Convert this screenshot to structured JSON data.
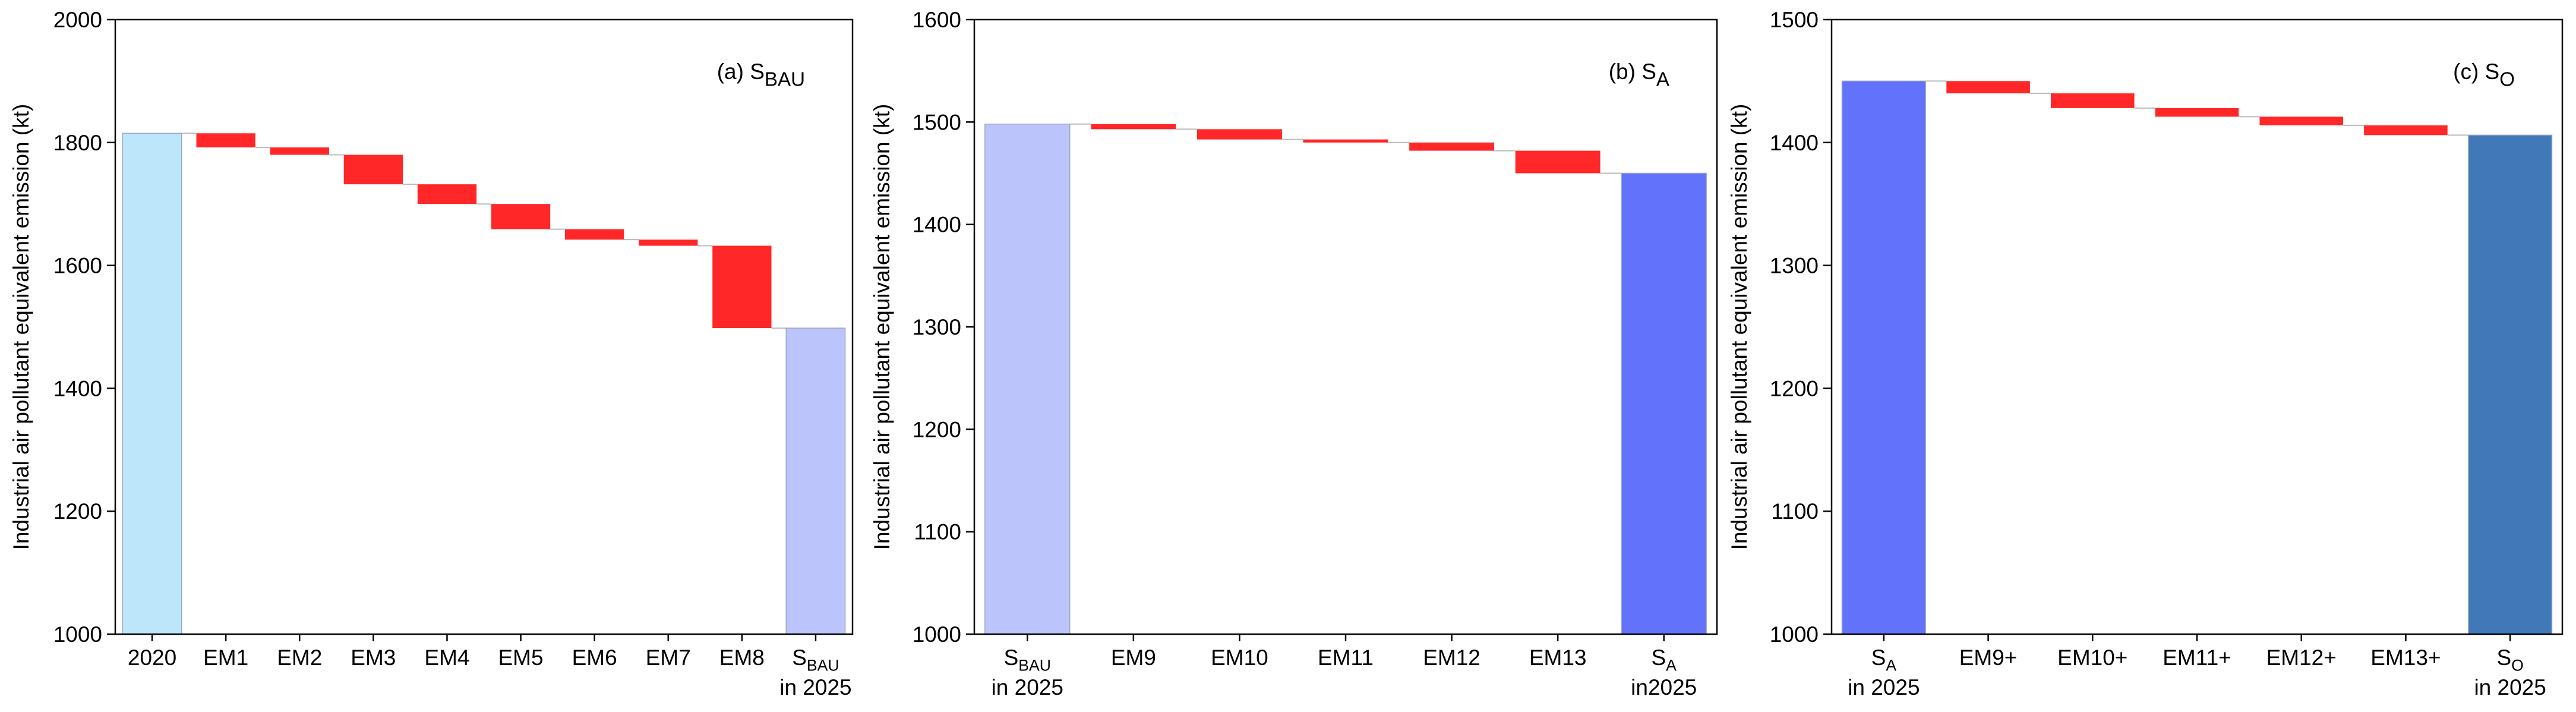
{
  "chart_data": [
    {
      "type": "waterfall",
      "title": {
        "text": "(a) S",
        "sub": "BAU"
      },
      "y_label": "Industrial air pollutant equivalent emission (kt)",
      "categories": [
        "2020",
        "EM1",
        "EM2",
        "EM3",
        "EM4",
        "EM5",
        "EM6",
        "EM7",
        "EM8",
        {
          "text": "S",
          "sub": "BAU",
          "line2": "in 2025"
        }
      ],
      "values": [
        1815,
        -23,
        -12,
        -48,
        -32,
        -41,
        -17,
        -10,
        -134,
        1498
      ],
      "colors": [
        "#bde6fa",
        "#ff2727",
        "#ff2727",
        "#ff2727",
        "#ff2727",
        "#ff2727",
        "#ff2727",
        "#ff2727",
        "#ff2727",
        "#bcc4fc"
      ],
      "ylim": [
        1000,
        2000
      ],
      "yticks": [
        1000,
        1200,
        1400,
        1600,
        1800,
        2000
      ]
    },
    {
      "type": "waterfall",
      "title": {
        "text": "(b) S",
        "sub": "A"
      },
      "y_label": "Industrial air pollutant equivalent emission (kt)",
      "categories": [
        {
          "text": "S",
          "sub": "BAU",
          "line2": "in 2025"
        },
        "EM9",
        "EM10",
        "EM11",
        "EM12",
        "EM13",
        {
          "text": "S",
          "sub": "A",
          "line2": "in2025"
        }
      ],
      "values": [
        1498,
        -5,
        -10,
        -3,
        -8,
        -22,
        1450
      ],
      "colors": [
        "#bcc4fc",
        "#ff2727",
        "#ff2727",
        "#ff2727",
        "#ff2727",
        "#ff2727",
        "#6272fa"
      ],
      "ylim": [
        1000,
        1600
      ],
      "yticks": [
        1000,
        1100,
        1200,
        1300,
        1400,
        1500,
        1600
      ]
    },
    {
      "type": "waterfall",
      "title": {
        "text": "(c) S",
        "sub": "O"
      },
      "y_label": "Industrial air pollutant equivalent emission (kt)",
      "categories": [
        {
          "text": "S",
          "sub": "A",
          "line2": "in 2025"
        },
        "EM9+",
        "EM10+",
        "EM11+",
        "EM12+",
        "EM13+",
        {
          "text": "S",
          "sub": "O",
          "line2": "in 2025"
        }
      ],
      "values": [
        1450,
        -10,
        -12,
        -7,
        -7,
        -8,
        1406
      ],
      "colors": [
        "#6272fa",
        "#ff2727",
        "#ff2727",
        "#ff2727",
        "#ff2727",
        "#ff2727",
        "#4179b8"
      ],
      "ylim": [
        1000,
        1500
      ],
      "yticks": [
        1000,
        1100,
        1200,
        1300,
        1400,
        1500
      ]
    }
  ]
}
